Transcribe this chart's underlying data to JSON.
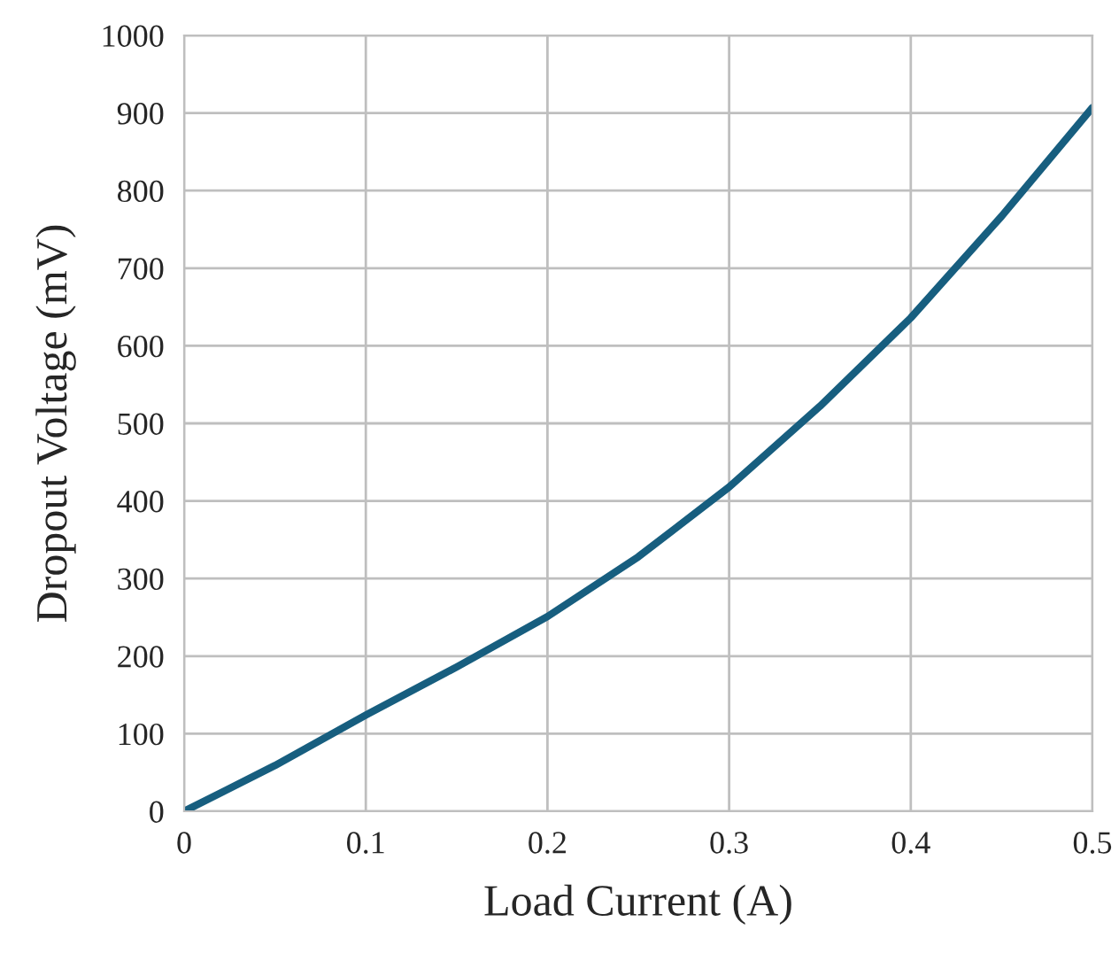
{
  "chart_data": {
    "type": "line",
    "xlabel": "Load Current (A)",
    "ylabel": "Dropout Voltage (mV)",
    "x": [
      0,
      0.05,
      0.1,
      0.15,
      0.2,
      0.25,
      0.3,
      0.35,
      0.4,
      0.45,
      0.5
    ],
    "series": [
      {
        "color": "#175e7f",
        "values": [
          0,
          59,
          124,
          186,
          251,
          328,
          418,
          522,
          636,
          767,
          907
        ]
      }
    ],
    "xlim": [
      0,
      0.5
    ],
    "xticks": [
      0,
      0.1,
      0.2,
      0.3,
      0.4,
      0.5
    ],
    "ylim": [
      0,
      1000
    ],
    "yticks": [
      0,
      100,
      200,
      300,
      400,
      500,
      600,
      700,
      800,
      900,
      1000
    ],
    "grid": true,
    "marker": "none",
    "line_style": "solid"
  }
}
